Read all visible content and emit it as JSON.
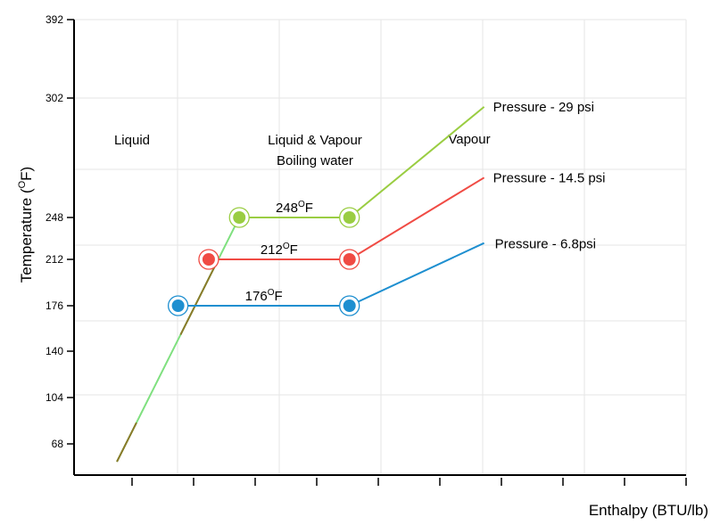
{
  "chart_data": {
    "type": "line",
    "title": "",
    "xlabel": "Enthalpy (BTU/lb)",
    "ylabel": "Temperature (",
    "ylabel_unit_sup": "O",
    "ylabel_unit_rest": "F)",
    "y_ticks": [
      "392",
      "302",
      "248",
      "212",
      "176",
      "140",
      "104",
      "68"
    ],
    "x_tick_count": 10,
    "grid": true,
    "regions": [
      {
        "lines": [
          "Liquid"
        ]
      },
      {
        "lines": [
          "Liquid & Vapour",
          "Boiling water"
        ]
      },
      {
        "lines": [
          "Vapour"
        ]
      }
    ],
    "colors": {
      "p29": "#9acd42",
      "p14": "#f04b44",
      "p6": "#1e8fd0",
      "liquid_line": "#7fe07f",
      "liquid_overlap": "#8a7a2a"
    },
    "series": [
      {
        "name": "Pressure - 29 psi",
        "color": "#9acd42",
        "boiling_label": "248",
        "boiling_label_sup": "O",
        "boiling_label_unit": "F",
        "points": [
          {
            "x": 0.27,
            "y": 248
          },
          {
            "x": 0.45,
            "y": 248
          },
          {
            "x": 0.67,
            "y": 298
          }
        ]
      },
      {
        "name": "Pressure - 14.5 psi",
        "color": "#f04b44",
        "boiling_label": "212",
        "boiling_label_sup": "O",
        "boiling_label_unit": "F",
        "points": [
          {
            "x": 0.22,
            "y": 212
          },
          {
            "x": 0.45,
            "y": 212
          },
          {
            "x": 0.67,
            "y": 266
          }
        ]
      },
      {
        "name": "Pressure - 6.8psi",
        "color": "#1e8fd0",
        "boiling_label": "176",
        "boiling_label_sup": "O",
        "boiling_label_unit": "F",
        "points": [
          {
            "x": 0.17,
            "y": 176
          },
          {
            "x": 0.45,
            "y": 176
          },
          {
            "x": 0.67,
            "y": 226
          }
        ]
      }
    ],
    "liquid_line": {
      "from": {
        "x": 0.07,
        "y": 56
      },
      "to": {
        "x": 0.27,
        "y": 248
      }
    }
  }
}
